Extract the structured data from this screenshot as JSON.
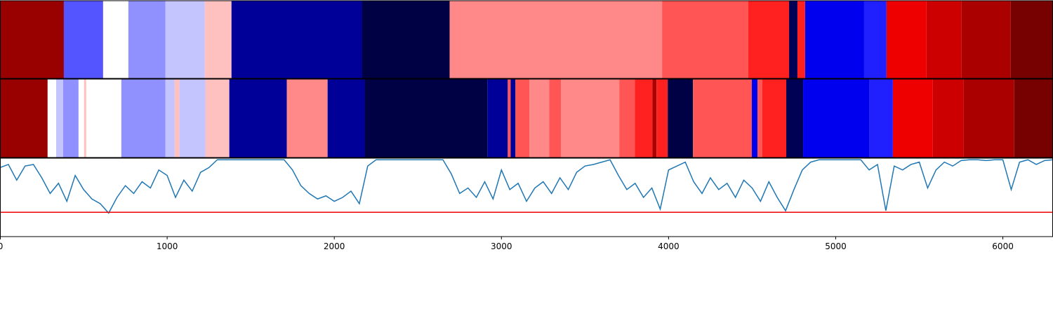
{
  "chart_data": [
    {
      "type": "segments",
      "xlim": [
        0,
        6300
      ],
      "segments": [
        {
          "start": 0,
          "end": 382,
          "color": "#990000"
        },
        {
          "start": 382,
          "end": 617,
          "color": "#5555ff"
        },
        {
          "start": 617,
          "end": 768,
          "color": "#ffffff"
        },
        {
          "start": 768,
          "end": 990,
          "color": "#9090ff"
        },
        {
          "start": 990,
          "end": 1225,
          "color": "#c4c4ff"
        },
        {
          "start": 1225,
          "end": 1385,
          "color": "#ffc0c0"
        },
        {
          "start": 1385,
          "end": 2165,
          "color": "#000099"
        },
        {
          "start": 2165,
          "end": 2690,
          "color": "#000044"
        },
        {
          "start": 2690,
          "end": 3961,
          "color": "#ff8888"
        },
        {
          "start": 3961,
          "end": 4477,
          "color": "#ff5555"
        },
        {
          "start": 4477,
          "end": 4721,
          "color": "#ff2020"
        },
        {
          "start": 4721,
          "end": 4771,
          "color": "#000055"
        },
        {
          "start": 4771,
          "end": 4817,
          "color": "#ff2020"
        },
        {
          "start": 4817,
          "end": 5170,
          "color": "#0000ee"
        },
        {
          "start": 5170,
          "end": 5304,
          "color": "#2020ff"
        },
        {
          "start": 5304,
          "end": 5543,
          "color": "#ee0000"
        },
        {
          "start": 5543,
          "end": 5753,
          "color": "#cc0000"
        },
        {
          "start": 5753,
          "end": 6047,
          "color": "#aa0000"
        },
        {
          "start": 6047,
          "end": 6300,
          "color": "#770000"
        }
      ]
    },
    {
      "type": "segments",
      "xlim": [
        0,
        6300
      ],
      "segments": [
        {
          "start": 0,
          "end": 285,
          "color": "#990000"
        },
        {
          "start": 285,
          "end": 336,
          "color": "#ffffff"
        },
        {
          "start": 336,
          "end": 378,
          "color": "#c4c4ff"
        },
        {
          "start": 378,
          "end": 470,
          "color": "#9090ff"
        },
        {
          "start": 470,
          "end": 503,
          "color": "#ffffff"
        },
        {
          "start": 503,
          "end": 516,
          "color": "#ffc0c0"
        },
        {
          "start": 516,
          "end": 726,
          "color": "#ffffff"
        },
        {
          "start": 726,
          "end": 990,
          "color": "#9090ff"
        },
        {
          "start": 990,
          "end": 1045,
          "color": "#c4c4ff"
        },
        {
          "start": 1045,
          "end": 1074,
          "color": "#ffc0c0"
        },
        {
          "start": 1074,
          "end": 1230,
          "color": "#c4c4ff"
        },
        {
          "start": 1230,
          "end": 1372,
          "color": "#ffc0c0"
        },
        {
          "start": 1372,
          "end": 1716,
          "color": "#000099"
        },
        {
          "start": 1716,
          "end": 1960,
          "color": "#ff8888"
        },
        {
          "start": 1960,
          "end": 2182,
          "color": "#000099"
        },
        {
          "start": 2182,
          "end": 2916,
          "color": "#000044"
        },
        {
          "start": 2916,
          "end": 3038,
          "color": "#000099"
        },
        {
          "start": 3038,
          "end": 3055,
          "color": "#ff5555"
        },
        {
          "start": 3055,
          "end": 3084,
          "color": "#000099"
        },
        {
          "start": 3084,
          "end": 3168,
          "color": "#ff5555"
        },
        {
          "start": 3168,
          "end": 3286,
          "color": "#ff8888"
        },
        {
          "start": 3286,
          "end": 3357,
          "color": "#ff5555"
        },
        {
          "start": 3357,
          "end": 3705,
          "color": "#ff8888"
        },
        {
          "start": 3705,
          "end": 3798,
          "color": "#ff5555"
        },
        {
          "start": 3798,
          "end": 3903,
          "color": "#ff2020"
        },
        {
          "start": 3903,
          "end": 3928,
          "color": "#aa0000"
        },
        {
          "start": 3928,
          "end": 3995,
          "color": "#ff2020"
        },
        {
          "start": 3995,
          "end": 4146,
          "color": "#000044"
        },
        {
          "start": 4146,
          "end": 4498,
          "color": "#ff5555"
        },
        {
          "start": 4498,
          "end": 4532,
          "color": "#0000ee"
        },
        {
          "start": 4532,
          "end": 4561,
          "color": "#ff5555"
        },
        {
          "start": 4561,
          "end": 4704,
          "color": "#ff2020"
        },
        {
          "start": 4704,
          "end": 4805,
          "color": "#000055"
        },
        {
          "start": 4805,
          "end": 5203,
          "color": "#0000ee"
        },
        {
          "start": 5203,
          "end": 5342,
          "color": "#2020ff"
        },
        {
          "start": 5342,
          "end": 5581,
          "color": "#ee0000"
        },
        {
          "start": 5581,
          "end": 5766,
          "color": "#cc0000"
        },
        {
          "start": 5766,
          "end": 6068,
          "color": "#aa0000"
        },
        {
          "start": 6068,
          "end": 6300,
          "color": "#770000"
        }
      ]
    },
    {
      "type": "line",
      "xlim": [
        0,
        6300
      ],
      "xticks": [
        0,
        1000,
        2000,
        3000,
        4000,
        5000,
        6000
      ],
      "ylim": [
        0,
        1
      ],
      "color": "#1f77b4",
      "hline": 0.31,
      "hline_color": "#ee0000",
      "x": [
        0,
        50,
        100,
        150,
        200,
        250,
        300,
        350,
        400,
        450,
        500,
        550,
        600,
        650,
        700,
        750,
        800,
        850,
        900,
        950,
        1000,
        1050,
        1100,
        1150,
        1200,
        1250,
        1300,
        1350,
        1400,
        1450,
        1500,
        1550,
        1600,
        1650,
        1700,
        1750,
        1800,
        1850,
        1900,
        1950,
        2000,
        2050,
        2100,
        2150,
        2200,
        2250,
        2300,
        2350,
        2400,
        2450,
        2500,
        2550,
        2600,
        2650,
        2700,
        2750,
        2800,
        2850,
        2900,
        2950,
        3000,
        3050,
        3100,
        3150,
        3200,
        3250,
        3300,
        3350,
        3400,
        3450,
        3500,
        3550,
        3600,
        3650,
        3700,
        3750,
        3800,
        3850,
        3900,
        3950,
        4000,
        4050,
        4100,
        4150,
        4200,
        4250,
        4300,
        4350,
        4400,
        4450,
        4500,
        4550,
        4600,
        4650,
        4700,
        4750,
        4800,
        4850,
        4900,
        4950,
        5000,
        5050,
        5100,
        5150,
        5200,
        5250,
        5300,
        5350,
        5400,
        5450,
        5500,
        5550,
        5600,
        5650,
        5700,
        5750,
        5800,
        5850,
        5900,
        5950,
        6000,
        6050,
        6100,
        6150,
        6200,
        6250,
        6300
      ],
      "values": [
        0.88,
        0.92,
        0.72,
        0.9,
        0.92,
        0.75,
        0.55,
        0.68,
        0.45,
        0.78,
        0.6,
        0.48,
        0.42,
        0.3,
        0.5,
        0.65,
        0.55,
        0.7,
        0.62,
        0.85,
        0.78,
        0.5,
        0.72,
        0.58,
        0.82,
        0.88,
        0.98,
        0.98,
        0.98,
        0.98,
        0.98,
        0.98,
        0.98,
        0.98,
        0.98,
        0.85,
        0.65,
        0.55,
        0.48,
        0.52,
        0.45,
        0.5,
        0.58,
        0.42,
        0.9,
        0.98,
        0.98,
        0.98,
        0.98,
        0.98,
        0.98,
        0.98,
        0.98,
        0.98,
        0.8,
        0.55,
        0.62,
        0.5,
        0.7,
        0.48,
        0.85,
        0.6,
        0.68,
        0.45,
        0.62,
        0.7,
        0.55,
        0.75,
        0.6,
        0.82,
        0.9,
        0.92,
        0.95,
        0.98,
        0.78,
        0.6,
        0.68,
        0.5,
        0.62,
        0.35,
        0.85,
        0.9,
        0.95,
        0.7,
        0.55,
        0.75,
        0.6,
        0.68,
        0.5,
        0.72,
        0.62,
        0.45,
        0.7,
        0.5,
        0.33,
        0.6,
        0.85,
        0.95,
        0.98,
        0.98,
        0.98,
        0.98,
        0.98,
        0.98,
        0.85,
        0.92,
        0.33,
        0.9,
        0.85,
        0.92,
        0.95,
        0.62,
        0.85,
        0.95,
        0.9,
        0.97,
        0.98,
        0.98,
        0.97,
        0.98,
        0.98,
        0.6,
        0.95,
        0.98,
        0.92,
        0.97,
        0.98
      ]
    }
  ]
}
